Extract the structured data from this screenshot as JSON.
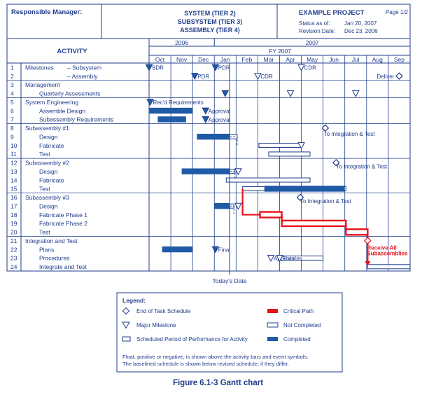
{
  "header": {
    "responsible_manager": "Responsible Manager:",
    "tiers": [
      "SYSTEM (TIER 2)",
      "SUBSYSTEM (TIER 3)",
      "ASSEMBLY (TIER 4)"
    ],
    "project": "EXAMPLE PROJECT",
    "page": "Page 1/2",
    "status_label": "Status as of:",
    "status_date": "Jan 20, 2007",
    "revision_label": "Revision Date:",
    "revision_date": "Dec 23, 2006"
  },
  "chart_data": {
    "type": "gantt",
    "activity_header": "ACTIVITY",
    "years": [
      "2006",
      "2007"
    ],
    "fiscal_year": "FY 2007",
    "months": [
      "Oct",
      "Nov",
      "Dec",
      "Jan",
      "Feb",
      "Mar",
      "Apr",
      "May",
      "Jun",
      "Jul",
      "Aug",
      "Sep"
    ],
    "today_label": "Today's Date",
    "today_month": 3.7,
    "rows": [
      {
        "num": "1",
        "label": "Milestones",
        "sub": "– Subsystem",
        "indent": 0
      },
      {
        "num": "2",
        "label": "",
        "sub": "– Assembly",
        "indent": 0
      },
      {
        "num": "3",
        "label": "Management",
        "indent": 0
      },
      {
        "num": "4",
        "label": "Quarterly Assessments",
        "indent": 1
      },
      {
        "num": "5",
        "label": "System Engineering",
        "indent": 0
      },
      {
        "num": "6",
        "label": "Assemble Design",
        "indent": 1
      },
      {
        "num": "7",
        "label": "Subassembly Requirements",
        "indent": 1
      },
      {
        "num": "8",
        "label": "Subassembly #1",
        "indent": 0
      },
      {
        "num": "9",
        "label": "Design",
        "indent": 1
      },
      {
        "num": "10",
        "label": "Fabricate",
        "indent": 1
      },
      {
        "num": "11",
        "label": "Test",
        "indent": 1
      },
      {
        "num": "12",
        "label": "Subassembly #2",
        "indent": 0
      },
      {
        "num": "13",
        "label": "Design",
        "indent": 1
      },
      {
        "num": "14",
        "label": "Fabricate",
        "indent": 1
      },
      {
        "num": "15",
        "label": "Test",
        "indent": 1
      },
      {
        "num": "16",
        "label": "Subassembly #3",
        "indent": 0
      },
      {
        "num": "17",
        "label": "Design",
        "indent": 1
      },
      {
        "num": "18",
        "label": "Fabricate Phase 1",
        "indent": 1
      },
      {
        "num": "19",
        "label": "Fabricate Phase 2",
        "indent": 1
      },
      {
        "num": "20",
        "label": "Test",
        "indent": 1
      },
      {
        "num": "21",
        "label": "Integration and Test",
        "indent": 0
      },
      {
        "num": "22",
        "label": "Plans",
        "indent": 1
      },
      {
        "num": "23",
        "label": "Procedures",
        "indent": 1
      },
      {
        "num": "24",
        "label": "Integrate and Test",
        "indent": 1
      }
    ],
    "bars": [
      {
        "row": 6,
        "start": 0.0,
        "end": 2.0,
        "status": "completed"
      },
      {
        "row": 7,
        "start": 0.4,
        "end": 1.7,
        "status": "completed"
      },
      {
        "row": 9,
        "start": 2.2,
        "end": 3.7,
        "status": "completed"
      },
      {
        "row": 9,
        "start": 3.7,
        "end": 4.05,
        "status": "not_completed"
      },
      {
        "row": 10,
        "start": 5.05,
        "end": 7.0,
        "status": "not_completed"
      },
      {
        "row": 11,
        "start": 5.5,
        "end": 7.4,
        "status": "not_completed"
      },
      {
        "row": 13,
        "start": 1.5,
        "end": 3.7,
        "status": "completed"
      },
      {
        "row": 13,
        "start": 3.7,
        "end": 3.95,
        "status": "not_completed"
      },
      {
        "row": 14,
        "start": 3.55,
        "end": 7.4,
        "status": "not_completed"
      },
      {
        "row": 15,
        "start": 4.3,
        "end": 9.05,
        "status": "not_completed"
      },
      {
        "row": 15,
        "start": 5.3,
        "end": 9.0,
        "status": "completed"
      },
      {
        "row": 17,
        "start": 3.0,
        "end": 3.7,
        "status": "completed"
      },
      {
        "row": 17,
        "start": 3.7,
        "end": 3.9,
        "status": "not_completed"
      },
      {
        "row": 18,
        "start": 5.1,
        "end": 6.1,
        "status": "critical"
      },
      {
        "row": 19,
        "start": 6.1,
        "end": 9.05,
        "status": "critical"
      },
      {
        "row": 20,
        "start": 9.05,
        "end": 10.05,
        "status": "critical"
      },
      {
        "row": 22,
        "start": 0.6,
        "end": 2.0,
        "status": "completed"
      },
      {
        "row": 23,
        "start": 6.0,
        "end": 8.0,
        "status": "not_completed"
      },
      {
        "row": 24,
        "start": 10.05,
        "end": 12.0,
        "status": "not_completed"
      }
    ],
    "events": [
      {
        "row": 1,
        "month": 0.0,
        "symbol": "major_milestone",
        "filled": true,
        "label": "SDR"
      },
      {
        "row": 1,
        "month": 3.05,
        "symbol": "major_milestone",
        "filled": true,
        "label": "PDR"
      },
      {
        "row": 1,
        "month": 7.0,
        "symbol": "major_milestone",
        "filled": false,
        "label": "CDR"
      },
      {
        "row": 2,
        "month": 2.1,
        "symbol": "major_milestone",
        "filled": true,
        "label": "PDR"
      },
      {
        "row": 2,
        "month": 5.0,
        "symbol": "major_milestone",
        "filled": false,
        "label": "CDR"
      },
      {
        "row": 2,
        "month": 11.5,
        "symbol": "end_of_task",
        "filled": false,
        "label": "Deliver"
      },
      {
        "row": 4,
        "month": 3.5,
        "symbol": "major_milestone",
        "filled": true,
        "label": ""
      },
      {
        "row": 4,
        "month": 6.5,
        "symbol": "major_milestone",
        "filled": false,
        "label": ""
      },
      {
        "row": 4,
        "month": 9.5,
        "symbol": "major_milestone",
        "filled": false,
        "label": ""
      },
      {
        "row": 5,
        "month": 0.05,
        "symbol": "major_milestone",
        "filled": true,
        "label": "Rec'd Requirements"
      },
      {
        "row": 6,
        "month": 2.6,
        "symbol": "major_milestone",
        "filled": true,
        "label": "Approval"
      },
      {
        "row": 7,
        "month": 2.6,
        "symbol": "major_milestone",
        "filled": true,
        "label": "Approval"
      },
      {
        "row": 8,
        "month": 8.1,
        "symbol": "end_of_task",
        "filled": false,
        "label": "To Integration & Test"
      },
      {
        "row": 10,
        "month": 7.0,
        "symbol": "major_milestone",
        "filled": false,
        "label": ""
      },
      {
        "row": 12,
        "month": 8.6,
        "symbol": "end_of_task",
        "filled": false,
        "label": "To Integration & Test"
      },
      {
        "row": 13,
        "month": 4.1,
        "symbol": "major_milestone",
        "filled": false,
        "label": ""
      },
      {
        "row": 16,
        "month": 6.95,
        "symbol": "end_of_task",
        "filled": false,
        "label": "To Integration & Test"
      },
      {
        "row": 17,
        "month": 4.1,
        "symbol": "major_milestone",
        "filled": false,
        "label": ""
      },
      {
        "row": 21,
        "month": 10.05,
        "symbol": "end_of_task",
        "filled": false,
        "label": "Receive All Subassemblies",
        "critical": true
      },
      {
        "row": 22,
        "month": 3.05,
        "symbol": "major_milestone",
        "filled": true,
        "label": "Final"
      },
      {
        "row": 23,
        "month": 5.6,
        "symbol": "major_milestone",
        "filled": false,
        "label": "Approval"
      },
      {
        "row": 23,
        "month": 6.0,
        "symbol": "major_milestone",
        "filled": false,
        "label": "Fixtures"
      }
    ],
    "legend": {
      "title": "Legend:",
      "items": [
        {
          "symbol": "end_of_task",
          "label": "End of Task Schedule"
        },
        {
          "symbol": "critical_path",
          "label": "Critical Path"
        },
        {
          "symbol": "major_milestone",
          "label": "Major Milestone"
        },
        {
          "symbol": "not_completed",
          "label": "Not Completed"
        },
        {
          "symbol": "scheduled_period",
          "label": "Scheduled Period of Performance for Activity"
        },
        {
          "symbol": "completed",
          "label": "Completed"
        }
      ],
      "notes": [
        "Float, positive or negative, is shown above the activity bars and event symbols.",
        "The baselined schedule is shown below revised schedule, if they differ."
      ]
    },
    "colors": {
      "ink": "#1f3c8c",
      "completed": "#1f5aa6",
      "critical": "#e8131b",
      "background": "#ffffff"
    }
  },
  "caption": "Figure 6.1-3  Gantt chart"
}
